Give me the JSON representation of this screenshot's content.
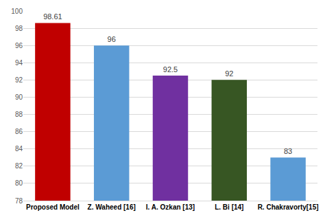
{
  "chart_data": {
    "type": "bar",
    "categories": [
      "Proposed Model",
      "Z. Waheed [16]",
      "I. A. Ozkan [13]",
      "L. Bi [14]",
      "R. Chakravorty[15]"
    ],
    "values": [
      98.61,
      96,
      92.5,
      92,
      83
    ],
    "colors": [
      "#c00000",
      "#5b9bd5",
      "#7030a0",
      "#375623",
      "#5b9bd5"
    ],
    "ylim": [
      78,
      100
    ],
    "yticks": [
      78,
      80,
      82,
      84,
      86,
      88,
      90,
      92,
      94,
      96,
      98,
      100
    ],
    "grid": true,
    "data_labels": true
  }
}
